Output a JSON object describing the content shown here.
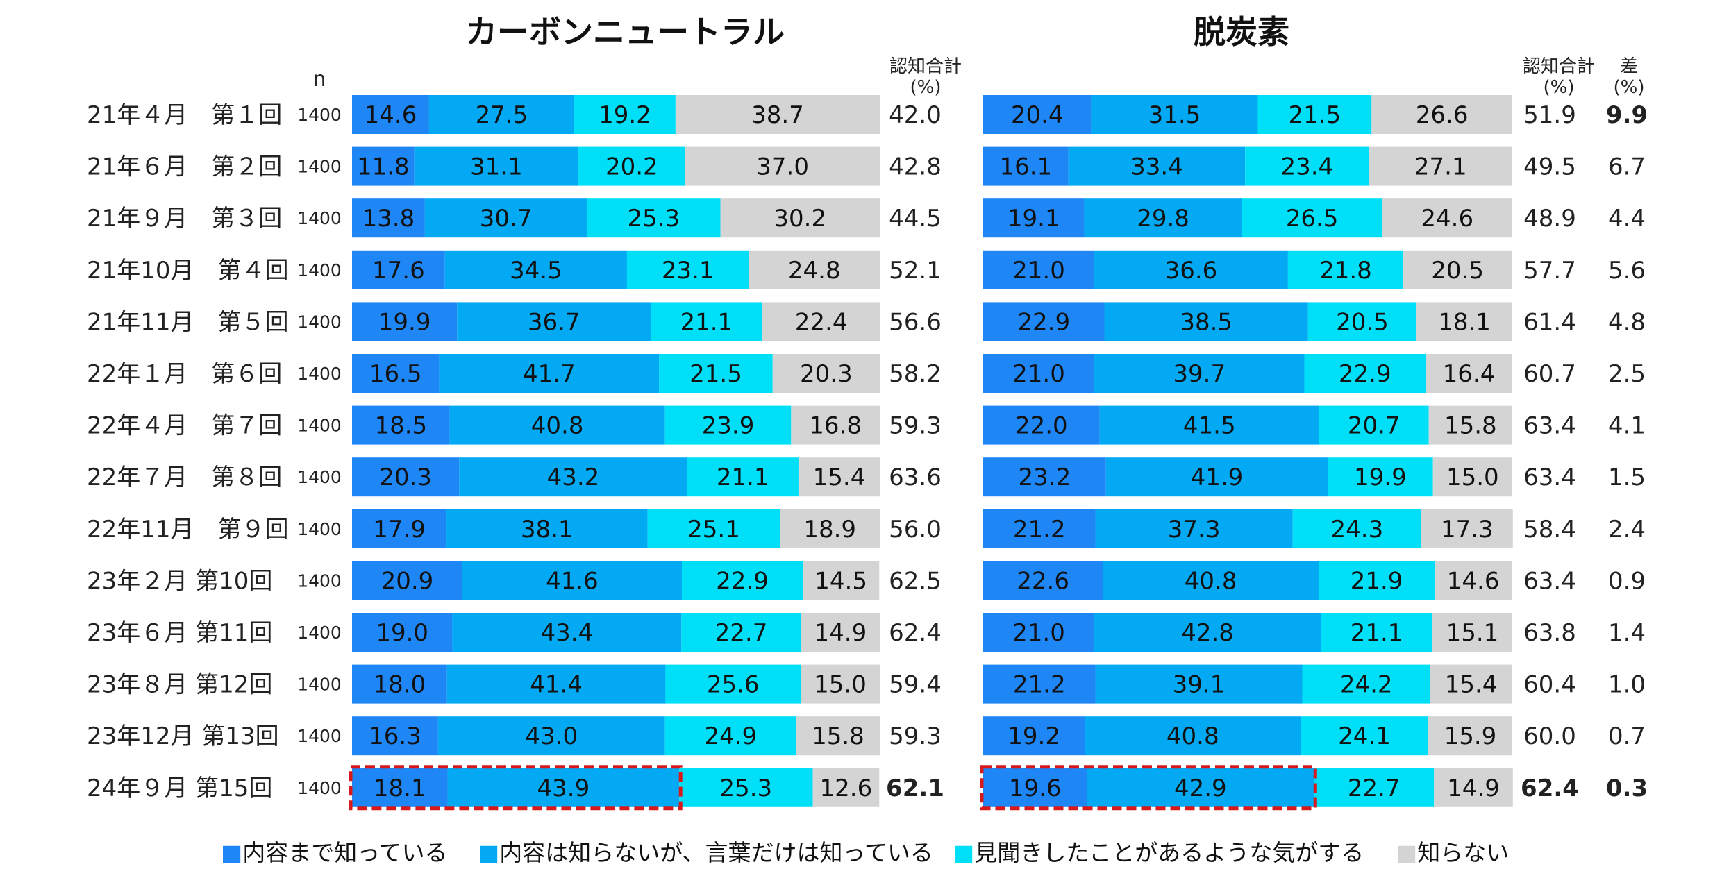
{
  "colors": {
    "detail": "#1f86f6",
    "name_only": "#03aaf3",
    "heard": "#00dff8",
    "unknown": "#d4d4d4",
    "highlight_text": "#e81c24",
    "highlight_box": "#d7191c"
  },
  "chart_data": {
    "type": "stacked-bar-100",
    "n_header": "n",
    "rows": [
      {
        "label": "21年４月　第１回",
        "n": "1400"
      },
      {
        "label": "21年６月　第２回",
        "n": "1400"
      },
      {
        "label": "21年９月　第３回",
        "n": "1400"
      },
      {
        "label": "21年10月　第４回",
        "n": "1400"
      },
      {
        "label": "21年11月　第５回",
        "n": "1400"
      },
      {
        "label": "22年１月　第６回",
        "n": "1400"
      },
      {
        "label": "22年４月　第７回",
        "n": "1400"
      },
      {
        "label": "22年７月　第８回",
        "n": "1400"
      },
      {
        "label": "22年11月　第９回",
        "n": "1400"
      },
      {
        "label": "23年２月 第10回",
        "n": "1400"
      },
      {
        "label": "23年６月 第11回",
        "n": "1400"
      },
      {
        "label": "23年８月 第12回",
        "n": "1400"
      },
      {
        "label": "23年12月 第13回",
        "n": "1400"
      },
      {
        "label": "24年９月 第15回",
        "n": "1400"
      }
    ],
    "series_names": [
      "内容まで知っている",
      "内容は知らないが、言葉だけは知っている",
      "見聞きしたことがあるような気がする",
      "知らない"
    ],
    "left": {
      "title": "カーボンニュートラル",
      "total_header": [
        "認知合計",
        "(%)"
      ],
      "values": [
        [
          "14.6",
          "27.5",
          "19.2",
          "38.7"
        ],
        [
          "11.8",
          "31.1",
          "20.2",
          "37.0"
        ],
        [
          "13.8",
          "30.7",
          "25.3",
          "30.2"
        ],
        [
          "17.6",
          "34.5",
          "23.1",
          "24.8"
        ],
        [
          "19.9",
          "36.7",
          "21.1",
          "22.4"
        ],
        [
          "16.5",
          "41.7",
          "21.5",
          "20.3"
        ],
        [
          "18.5",
          "40.8",
          "23.9",
          "16.8"
        ],
        [
          "20.3",
          "43.2",
          "21.1",
          "15.4"
        ],
        [
          "17.9",
          "38.1",
          "25.1",
          "18.9"
        ],
        [
          "20.9",
          "41.6",
          "22.9",
          "14.5"
        ],
        [
          "19.0",
          "43.4",
          "22.7",
          "14.9"
        ],
        [
          "18.0",
          "41.4",
          "25.6",
          "15.0"
        ],
        [
          "16.3",
          "43.0",
          "24.9",
          "15.8"
        ],
        [
          "18.1",
          "43.9",
          "25.3",
          "12.6"
        ]
      ],
      "totals": [
        "42.0",
        "42.8",
        "44.5",
        "52.1",
        "56.6",
        "58.2",
        "59.3",
        "63.6",
        "56.0",
        "62.5",
        "62.4",
        "59.4",
        "59.3",
        "62.1"
      ]
    },
    "right": {
      "title": "脱炭素",
      "total_header": [
        "認知合計",
        "(%)"
      ],
      "diff_header": [
        "差",
        "(%)"
      ],
      "values": [
        [
          "20.4",
          "31.5",
          "21.5",
          "26.6"
        ],
        [
          "16.1",
          "33.4",
          "23.4",
          "27.1"
        ],
        [
          "19.1",
          "29.8",
          "26.5",
          "24.6"
        ],
        [
          "21.0",
          "36.6",
          "21.8",
          "20.5"
        ],
        [
          "22.9",
          "38.5",
          "20.5",
          "18.1"
        ],
        [
          "21.0",
          "39.7",
          "22.9",
          "16.4"
        ],
        [
          "22.0",
          "41.5",
          "20.7",
          "15.8"
        ],
        [
          "23.2",
          "41.9",
          "19.9",
          "15.0"
        ],
        [
          "21.2",
          "37.3",
          "24.3",
          "17.3"
        ],
        [
          "22.6",
          "40.8",
          "21.9",
          "14.6"
        ],
        [
          "21.0",
          "42.8",
          "21.1",
          "15.1"
        ],
        [
          "21.2",
          "39.1",
          "24.2",
          "15.4"
        ],
        [
          "19.2",
          "40.8",
          "24.1",
          "15.9"
        ],
        [
          "19.6",
          "42.9",
          "22.7",
          "14.9"
        ]
      ],
      "totals": [
        "51.9",
        "49.5",
        "48.9",
        "57.7",
        "61.4",
        "60.7",
        "63.4",
        "63.4",
        "58.4",
        "63.4",
        "63.8",
        "60.4",
        "60.0",
        "62.4"
      ],
      "diffs": [
        "9.9",
        "6.7",
        "4.4",
        "5.6",
        "4.8",
        "2.5",
        "4.1",
        "1.5",
        "2.4",
        "0.9",
        "1.4",
        "1.0",
        "0.7",
        "0.3"
      ]
    },
    "red_diff_rows": [
      0,
      13
    ],
    "red_total_rows": [
      13
    ],
    "boxed_row": 13,
    "legend_items": [
      "■内容まで知っている",
      "■内容は知らないが、言葉だけは知っている",
      "■見聞きしたことがあるような気がする",
      "■知らない"
    ]
  }
}
